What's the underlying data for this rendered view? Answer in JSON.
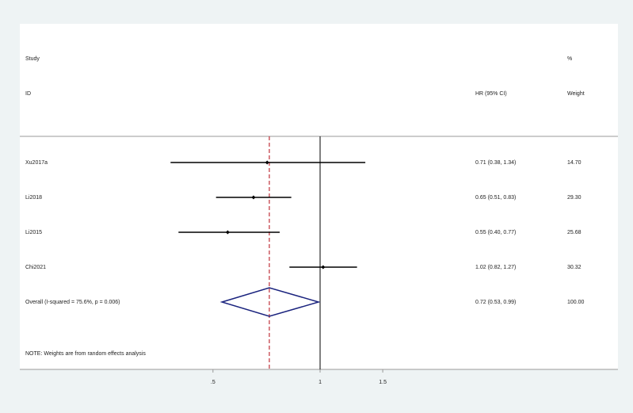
{
  "chart_data": {
    "type": "forest",
    "headers": {
      "study": "Study",
      "id": "ID",
      "effect": "HR (95% CI)",
      "percent": "%",
      "weight": "Weight"
    },
    "categories": [
      "Xu2017a",
      "Li2018",
      "Li2015",
      "Chi2021"
    ],
    "values": [
      0.71,
      0.65,
      0.55,
      1.02
    ],
    "lower": [
      0.38,
      0.51,
      0.4,
      0.82
    ],
    "upper": [
      1.34,
      0.83,
      0.77,
      1.27
    ],
    "value_labels": [
      "0.71 (0.38, 1.34)",
      "0.65 (0.51, 0.83)",
      "0.55 (0.40, 0.77)",
      "1.02 (0.82, 1.27)"
    ],
    "weights": [
      14.7,
      29.3,
      25.68,
      30.32
    ],
    "weight_labels": [
      "14.70",
      "29.30",
      "25.68",
      "30.32"
    ],
    "overall": {
      "label": "Overall  (I-squared = 75.6%, p = 0.006)",
      "value": 0.72,
      "lower": 0.53,
      "upper": 0.99,
      "value_label": "0.72 (0.53, 0.99)",
      "weight": 100,
      "weight_label": "100.00"
    },
    "note": "NOTE: Weights are from random effects analysis",
    "null_line": 1,
    "log_scale": true,
    "xlim": [
      0.34,
      1.6
    ],
    "xticks": [
      {
        "value": 0.5,
        "label": ".5"
      },
      1,
      1.5
    ]
  }
}
